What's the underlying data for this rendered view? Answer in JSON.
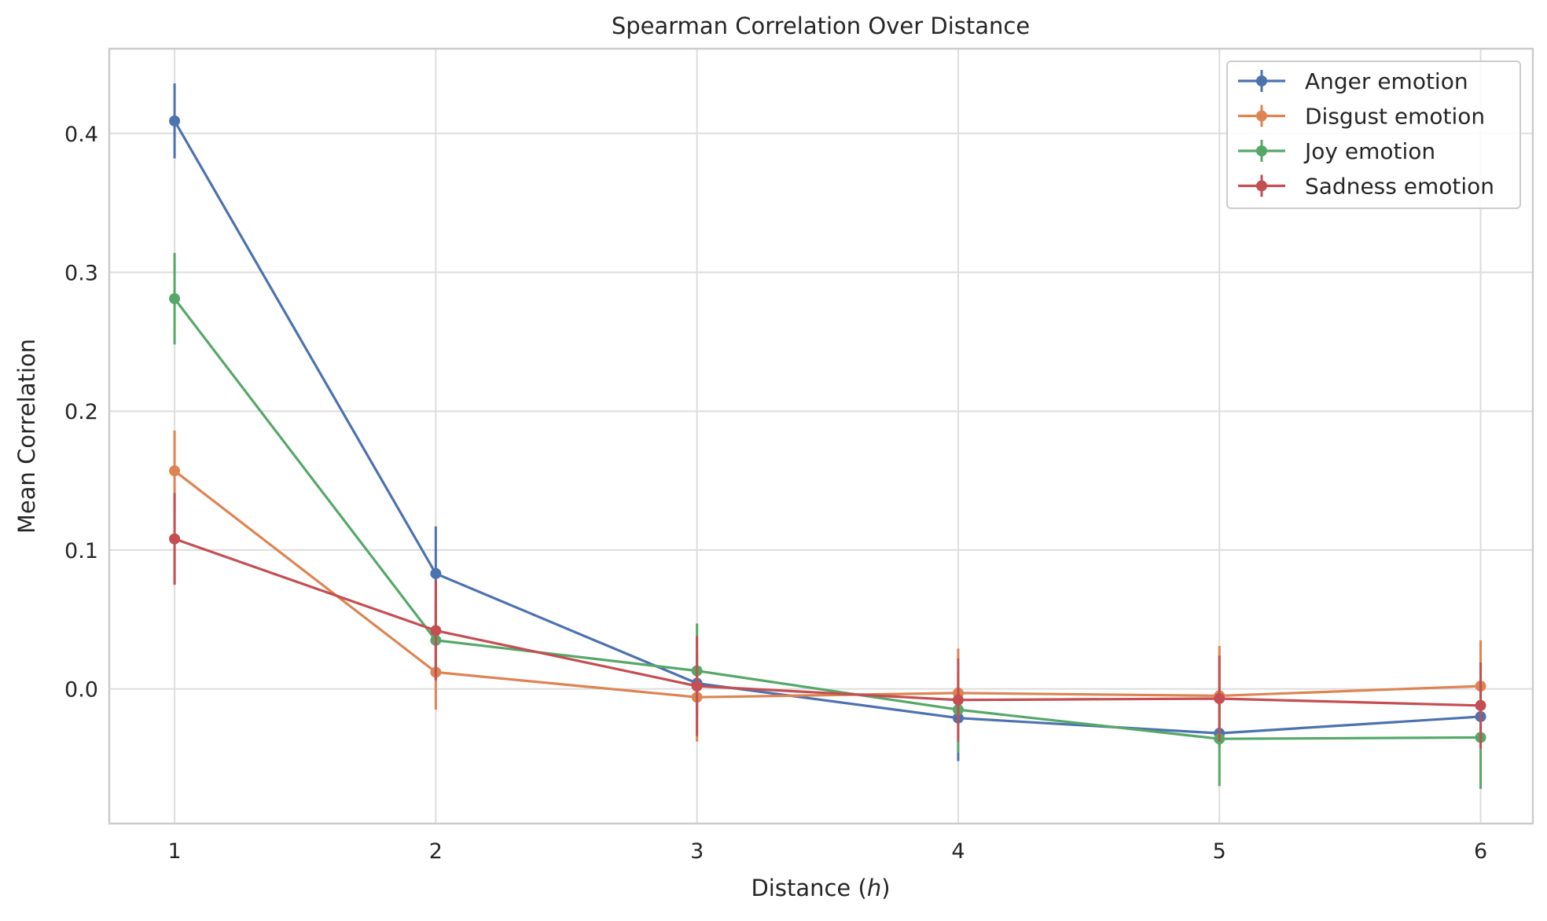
{
  "chart_data": {
    "type": "line",
    "title": "Spearman Correlation Over Distance",
    "xlabel_prefix": "Distance (",
    "xlabel_var": "h",
    "xlabel_suffix": ")",
    "ylabel": "Mean Correlation",
    "x": [
      1,
      2,
      3,
      4,
      5,
      6
    ],
    "x_ticks": [
      "1",
      "2",
      "3",
      "4",
      "5",
      "6"
    ],
    "xlim": [
      0.75,
      6.2
    ],
    "y_ticks": [
      0.0,
      0.1,
      0.2,
      0.3,
      0.4
    ],
    "y_tick_labels": [
      "0.0",
      "0.1",
      "0.2",
      "0.3",
      "0.4"
    ],
    "ylim": [
      -0.097,
      0.461
    ],
    "grid": true,
    "legend_position": "top-right",
    "series": [
      {
        "name": "Anger emotion",
        "color": "#4c72b0",
        "values": [
          0.409,
          0.083,
          0.004,
          -0.021,
          -0.032,
          -0.02
        ],
        "errors": [
          0.027,
          0.034,
          0.012,
          0.031,
          0.01,
          0.01
        ]
      },
      {
        "name": "Disgust emotion",
        "color": "#dd8452",
        "values": [
          0.157,
          0.012,
          -0.006,
          -0.003,
          -0.005,
          0.002
        ],
        "errors": [
          0.029,
          0.027,
          0.032,
          0.032,
          0.036,
          0.033
        ]
      },
      {
        "name": "Joy emotion",
        "color": "#55a868",
        "values": [
          0.281,
          0.035,
          0.013,
          -0.015,
          -0.036,
          -0.035
        ],
        "errors": [
          0.033,
          0.026,
          0.034,
          0.031,
          0.034,
          0.037
        ]
      },
      {
        "name": "Sadness emotion",
        "color": "#c44e52",
        "values": [
          0.108,
          0.042,
          0.002,
          -0.008,
          -0.007,
          -0.012
        ],
        "errors": [
          0.033,
          0.036,
          0.036,
          0.03,
          0.031,
          0.031
        ]
      }
    ]
  }
}
